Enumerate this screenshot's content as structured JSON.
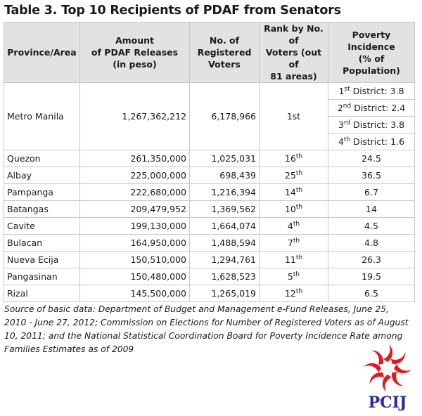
{
  "title": "Table 3. Top 10 Recipients of PDAF from Senators",
  "headers": {
    "area": [
      "Province/Area"
    ],
    "amount": [
      "Amount",
      "of PDAF Releases",
      "(in peso)"
    ],
    "voters": [
      "No. of",
      "Registered",
      "Voters"
    ],
    "rank": [
      "Rank by No. of",
      "Voters (out of",
      "81 areas)"
    ],
    "poverty": [
      "Poverty Incidence",
      "(% of Population)"
    ]
  },
  "metro": {
    "area": "Metro Manila",
    "amount": "1,267,362,212",
    "voters": "6,178,966",
    "rank": "1st",
    "districts": [
      {
        "num": "1",
        "sup": "st",
        "rest": " District: 3.8"
      },
      {
        "num": "2",
        "sup": "nd",
        "rest": " District: 2.4"
      },
      {
        "num": "3",
        "sup": "rd",
        "rest": " District: 3.8"
      },
      {
        "num": "4",
        "sup": "th",
        "rest": " District: 1.6"
      }
    ]
  },
  "rows": [
    {
      "area": "Quezon",
      "amount": "261,350,000",
      "voters": "1,025,031",
      "rank_num": "16",
      "rank_sup": "th",
      "poverty": "24.5"
    },
    {
      "area": "Albay",
      "amount": "225,000,000",
      "voters": "698,439",
      "rank_num": "25",
      "rank_sup": "th",
      "poverty": "36.5"
    },
    {
      "area": "Pampanga",
      "amount": "222,680,000",
      "voters": "1,216,394",
      "rank_num": "14",
      "rank_sup": "th",
      "poverty": "6.7"
    },
    {
      "area": "Batangas",
      "amount": "209,479,952",
      "voters": "1,369,562",
      "rank_num": "10",
      "rank_sup": "th",
      "poverty": "14"
    },
    {
      "area": "Cavite",
      "amount": "199,130,000",
      "voters": "1,664,074",
      "rank_num": "4",
      "rank_sup": "th",
      "poverty": "4.5"
    },
    {
      "area": "Bulacan",
      "amount": "164,950,000",
      "voters": "1,488,594",
      "rank_num": "7",
      "rank_sup": "th",
      "poverty": "4.8"
    },
    {
      "area": "Nueva Ecija",
      "amount": "150,510,000",
      "voters": "1,294,761",
      "rank_num": "11",
      "rank_sup": "th",
      "poverty": "26.3"
    },
    {
      "area": "Pangasinan",
      "amount": "150,480,000",
      "voters": "1,628,523",
      "rank_num": "5",
      "rank_sup": "th",
      "poverty": "19.5"
    },
    {
      "area": "Rizal",
      "amount": "145,500,000",
      "voters": "1,265,019",
      "rank_num": "12",
      "rank_sup": "th",
      "poverty": "6.5"
    }
  ],
  "source": "Source of basic data: Department of Budget and Management e-Fund Releases, June 25, 2010 - June 27, 2012; Commission on Elections for Number of Registered Voters as of August 10, 2011; and the National Statistical Coordination Board for Poverty Incidence Rate among Families Estimates as of 2009",
  "logo": {
    "text": "PCIJ",
    "icon": "pcij-sun-logo-icon",
    "color": "#e8151b",
    "text_color": "#2a2aa8"
  }
}
